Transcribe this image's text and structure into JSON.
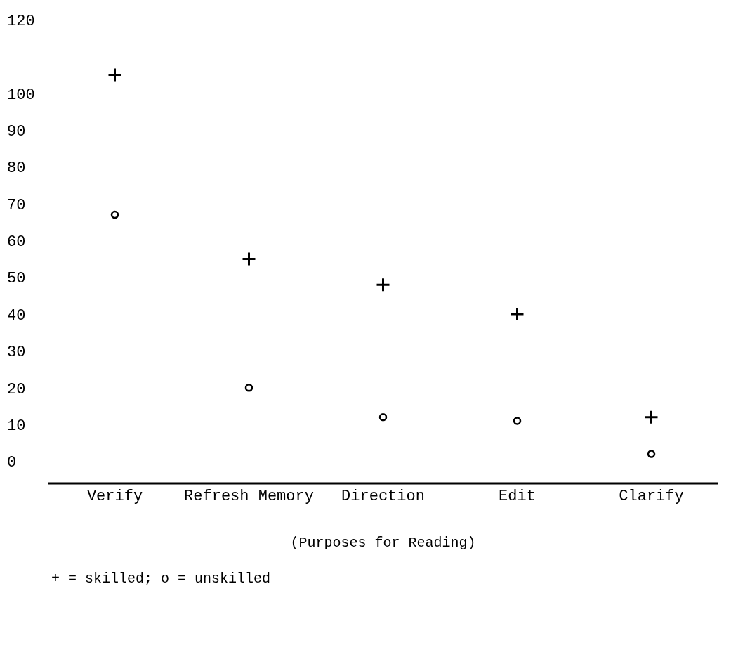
{
  "chart_data": {
    "type": "scatter",
    "xlabel": "(Purposes for Reading)",
    "categories": [
      "Verify",
      "Refresh Memory",
      "Direction",
      "Edit",
      "Clarify"
    ],
    "series": [
      {
        "color": "#000000",
        "marker": "cross",
        "values": [
          105,
          55,
          48,
          40,
          12
        ]
      },
      {
        "color": "#000000",
        "marker": "circle",
        "values": [
          67,
          20,
          12,
          11,
          2
        ]
      }
    ],
    "ylim": [
      -6,
      120
    ],
    "yticks": [
      0,
      10,
      20,
      30,
      40,
      50,
      60,
      70,
      80,
      90,
      100,
      120
    ],
    "grid": false,
    "legend": false,
    "annotations": [
      "+ = skilled; o = unskilled"
    ]
  }
}
